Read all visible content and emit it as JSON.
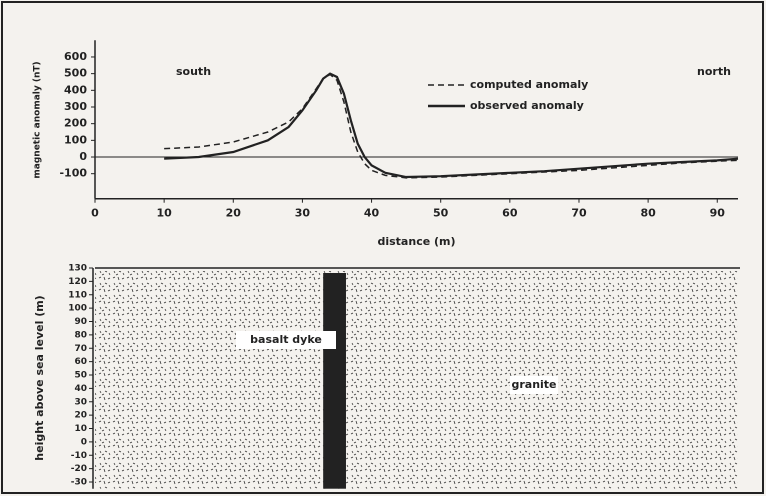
{
  "chart_data": [
    {
      "type": "line",
      "ylabel": "magnetic anomaly (nT)",
      "xlabel": "distance (m)",
      "annotations": [
        "south",
        "north"
      ],
      "x": [
        10,
        15,
        20,
        25,
        28,
        30,
        32,
        33,
        34,
        35,
        36,
        37,
        38,
        39,
        40,
        42,
        45,
        50,
        55,
        60,
        65,
        70,
        75,
        80,
        85,
        90,
        93
      ],
      "series": [
        {
          "name": "computed anomaly",
          "color": "#222222",
          "linestyle": "dashed",
          "values": [
            50,
            60,
            90,
            150,
            210,
            290,
            410,
            470,
            495,
            460,
            330,
            150,
            30,
            -40,
            -80,
            -110,
            -125,
            -120,
            -110,
            -100,
            -90,
            -80,
            -65,
            -50,
            -35,
            -25,
            -20
          ]
        },
        {
          "name": "observed anomaly",
          "color": "#222222",
          "linestyle": "solid",
          "values": [
            -10,
            0,
            30,
            100,
            180,
            280,
            400,
            470,
            500,
            480,
            380,
            220,
            80,
            0,
            -50,
            -95,
            -120,
            -115,
            -105,
            -95,
            -85,
            -70,
            -55,
            -40,
            -30,
            -20,
            -10
          ]
        }
      ],
      "xlim": [
        0,
        93
      ],
      "xticks": [
        0,
        10,
        20,
        30,
        40,
        50,
        60,
        70,
        80,
        90
      ],
      "ylim": [
        -250,
        700
      ],
      "yticks": [
        -100,
        0,
        100,
        200,
        300,
        400,
        500,
        600
      ]
    },
    {
      "type": "section",
      "ylabel": "height above sea level (m)",
      "xlim": [
        0,
        93
      ],
      "ylim": [
        -35,
        130
      ],
      "yticks": [
        130,
        120,
        110,
        100,
        90,
        80,
        70,
        60,
        50,
        40,
        30,
        20,
        10,
        0,
        -10,
        -20,
        -30
      ],
      "bodies": [
        {
          "label": "basalt dyke",
          "x": [
            33,
            36.3
          ],
          "color": "#222222"
        },
        {
          "label": "granite"
        }
      ]
    }
  ]
}
